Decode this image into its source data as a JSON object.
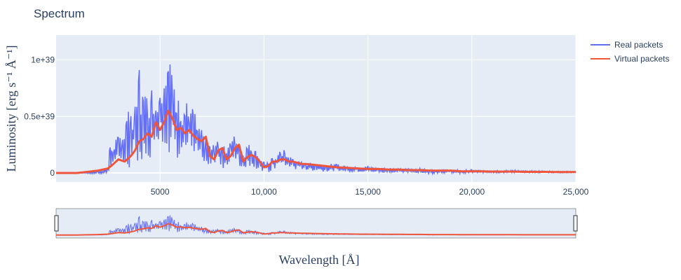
{
  "chart_data": {
    "type": "line",
    "title": "Spectrum",
    "xlabel": "Wavelength [Å]",
    "ylabel": "Luminosity [erg s⁻¹ Å⁻¹]",
    "xlim": [
      0,
      25000
    ],
    "ylim": [
      -8e+37,
      1.22e+39
    ],
    "x_ticks": [
      5000,
      10000,
      15000,
      20000,
      25000
    ],
    "x_tick_labels": [
      "5000",
      "10,000",
      "15,000",
      "20,000",
      "25,000"
    ],
    "y_ticks": [
      0,
      5e+38,
      1e+39
    ],
    "y_tick_labels": [
      "0",
      "0.5e+39",
      "1e+39"
    ],
    "grid": true,
    "legend_position": "top-right",
    "range_slider": true,
    "series": [
      {
        "name": "Real packets",
        "color": "#636efa",
        "x": [
          0,
          1000,
          2000,
          2500,
          2600,
          2700,
          2800,
          3000,
          3200,
          3400,
          3600,
          3800,
          4000,
          4200,
          4400,
          4600,
          4800,
          5000,
          5200,
          5400,
          5600,
          5800,
          6000,
          6200,
          6400,
          6600,
          6800,
          7000,
          7200,
          7400,
          7600,
          7800,
          8000,
          8200,
          8400,
          8600,
          8800,
          9000,
          9200,
          9400,
          9600,
          9800,
          10000,
          10200,
          10400,
          10600,
          10800,
          11000,
          11200,
          11400,
          11600,
          11800,
          12000,
          12500,
          13000,
          13500,
          14000,
          14500,
          15000,
          15500,
          16000,
          16500,
          17000,
          17500,
          18000,
          18500,
          19000,
          19500,
          20000,
          20500,
          21000,
          21500,
          22000,
          22500,
          23000,
          23500,
          24000,
          24500,
          25000
        ],
        "y_max": [
          0,
          0,
          2e+37,
          4e+37,
          3e+38,
          2.8e+38,
          3e+38,
          3.3e+38,
          4e+38,
          5.2e+38,
          6e+38,
          6.2e+38,
          9.5e+38,
          7.2e+38,
          7e+38,
          7.8e+38,
          7.2e+38,
          8.8e+38,
          8.5e+38,
          1.15e+39,
          9.2e+38,
          7e+38,
          6.2e+38,
          6.6e+38,
          6e+38,
          5.8e+38,
          4.5e+38,
          3.8e+38,
          3e+38,
          2.5e+38,
          2.8e+38,
          3.2e+38,
          2.5e+38,
          2.2e+38,
          3e+38,
          3.5e+38,
          2.8e+38,
          1.8e+38,
          2.6e+38,
          2.5e+38,
          2e+38,
          1.5e+38,
          1e+38,
          1e+38,
          1.5e+38,
          1.6e+38,
          2.2e+38,
          2e+38,
          1.5e+38,
          1.4e+38,
          1.2e+38,
          1e+38,
          1e+38,
          9e+37,
          8e+37,
          8e+37,
          6e+37,
          6e+37,
          6e+37,
          5e+37,
          5e+37,
          4e+37,
          4e+37,
          4e+37,
          3e+37,
          3e+37,
          3e+37,
          2.5e+37,
          3e+37,
          2e+37,
          2.5e+37,
          2e+37,
          3e+37,
          2e+37,
          2e+37,
          2e+37,
          1.5e+37,
          1.5e+37,
          1e+37
        ],
        "y_min": [
          0,
          0,
          -1e+37,
          0.0,
          0.0,
          0.0,
          2e+37,
          5e+37,
          5e+37,
          0.0,
          8e+37,
          2e+37,
          1e+38,
          5e+37,
          1.5e+38,
          1.2e+38,
          2e+38,
          2e+38,
          2.5e+38,
          2e+38,
          1e+38,
          1e+38,
          1.8e+38,
          1e+38,
          2e+38,
          1e+38,
          1e+38,
          5e+37,
          5e+37,
          3e+37,
          5e+37,
          8e+37,
          4e+37,
          5e+37,
          1e+38,
          1e+38,
          5e+37,
          3e+37,
          6e+37,
          5e+37,
          4e+37,
          2e+37,
          0.0,
          0.0,
          2e+37,
          2e+37,
          5e+37,
          5e+37,
          4e+37,
          3e+37,
          3e+37,
          2e+37,
          2e+37,
          2e+37,
          1e+37,
          2e+37,
          1e+37,
          1e+37,
          1e+37,
          0.0,
          0.0,
          0.0,
          0.0,
          0.0,
          -1e+37,
          0.0,
          0.0,
          -1e+37,
          0.0,
          0.0,
          0.0,
          0.0,
          0.0,
          0.0,
          0.0,
          0.0,
          0.0,
          0.0,
          0.0
        ]
      },
      {
        "name": "Virtual packets",
        "color": "#ef553b",
        "x": [
          0,
          1000,
          1500,
          2000,
          2500,
          2700,
          3000,
          3300,
          3600,
          3800,
          4000,
          4200,
          4400,
          4600,
          4800,
          5000,
          5200,
          5400,
          5600,
          5800,
          6000,
          6200,
          6400,
          6600,
          6800,
          7000,
          7200,
          7400,
          7600,
          7800,
          8000,
          8200,
          8400,
          8600,
          8800,
          9000,
          9200,
          9400,
          9600,
          9800,
          10000,
          10200,
          10400,
          10600,
          10800,
          11000,
          11200,
          11400,
          11600,
          11800,
          12000,
          12500,
          13000,
          13500,
          14000,
          14500,
          15000,
          15500,
          16000,
          16500,
          17000,
          17500,
          18000,
          18500,
          19000,
          19500,
          20000,
          20500,
          21000,
          21500,
          22000,
          22500,
          23000,
          23500,
          24000,
          24500,
          25000
        ],
        "y": [
          0,
          0,
          1e+37,
          2e+37,
          4e+37,
          7e+37,
          1.2e+38,
          1e+38,
          1.5e+38,
          2e+38,
          2.8e+38,
          3e+38,
          3.5e+38,
          3.2e+38,
          4.5e+38,
          3.8e+38,
          4.5e+38,
          5.5e+38,
          4.8e+38,
          3.8e+38,
          4e+38,
          3.5e+38,
          3.8e+38,
          3.3e+38,
          3e+38,
          2.8e+38,
          3.2e+38,
          1.5e+38,
          1.2e+38,
          2e+38,
          2.2e+38,
          1.2e+38,
          1.5e+38,
          2.2e+38,
          2.5e+38,
          1e+38,
          1.4e+38,
          1.6e+38,
          1.4e+38,
          1e+38,
          5e+37,
          6e+37,
          1e+38,
          1e+38,
          1.2e+38,
          1.2e+38,
          1e+38,
          1e+38,
          9e+37,
          8e+37,
          8e+37,
          7e+37,
          6e+37,
          5e+37,
          4.5e+37,
          4e+37,
          3.5e+37,
          3.5e+37,
          3e+37,
          3e+37,
          2.5e+37,
          2.5e+37,
          2e+37,
          2e+37,
          2e+37,
          1.5e+37,
          1.5e+37,
          1.5e+37,
          1.2e+37,
          1.2e+37,
          1.2e+37,
          1e+37,
          1e+37,
          1e+37,
          8e+36,
          8e+36,
          8e+36
        ]
      }
    ]
  }
}
